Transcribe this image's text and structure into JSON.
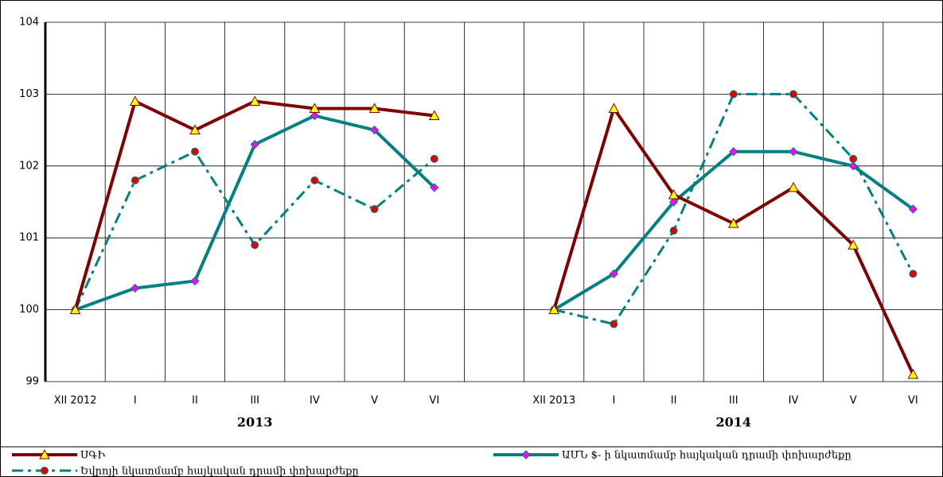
{
  "chart_data": {
    "type": "line",
    "categories": [
      "XII 2012",
      "I",
      "II",
      "III",
      "IV",
      "V",
      "VI",
      null,
      "XII 2013",
      "I",
      "II",
      "III",
      "IV",
      "V",
      "VI"
    ],
    "annotations": [
      "2013",
      "2014"
    ],
    "ylim": [
      99,
      104
    ],
    "yticks": [
      99,
      100,
      101,
      102,
      103,
      104
    ],
    "grid": true,
    "series": [
      {
        "name": "ՍԳԻ",
        "color": "#800000",
        "marker": "triangle",
        "marker_color": "#ffff00",
        "values": [
          100,
          102.9,
          102.5,
          102.9,
          102.8,
          102.8,
          102.7,
          null,
          100,
          102.8,
          101.6,
          101.2,
          101.7,
          100.9,
          99.1
        ]
      },
      {
        "name": "ԱՄՆ $- ի նկատմամբ հայկական դրամի փոխարժեքը",
        "color": "#008080",
        "marker": "diamond",
        "marker_color": "#ff00ff",
        "values": [
          100,
          100.3,
          100.4,
          102.3,
          102.7,
          102.5,
          101.7,
          null,
          100,
          100.5,
          101.5,
          102.2,
          102.2,
          102.0,
          101.4
        ]
      },
      {
        "name": "Եվրոյի նկատմամբ հայկական դրամի փոխարժեքը",
        "color": "#008080",
        "dash": true,
        "marker": "circle",
        "marker_color": "#e00000",
        "values": [
          100,
          101.8,
          102.2,
          100.9,
          101.8,
          101.4,
          102.1,
          null,
          100,
          99.8,
          101.1,
          103.0,
          103.0,
          102.1,
          100.5
        ]
      }
    ]
  }
}
